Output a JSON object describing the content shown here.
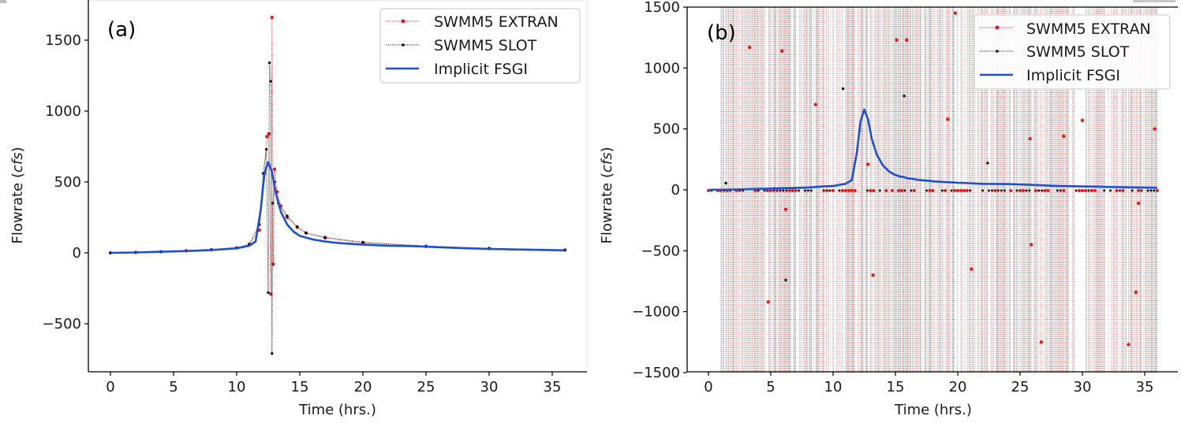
{
  "chart_data": [
    {
      "panel_label": "(a)",
      "type": "line",
      "xlabel": "Time (hrs.)",
      "ylabel_prefix": "Flowrate (",
      "ylabel_unit": "cfs",
      "ylabel_suffix": ")",
      "xlim": [
        -1.5,
        38
      ],
      "ylim": [
        -840,
        1760
      ],
      "xticks": [
        0,
        5,
        10,
        15,
        20,
        25,
        30,
        35
      ],
      "yticks": [
        -500,
        0,
        500,
        1000,
        1500
      ],
      "legend_position": "top-right",
      "series": [
        {
          "name": "SWMM5 EXTRAN",
          "style": "dotted-with-markers",
          "color": "#e8191a",
          "x": [
            0,
            2,
            4,
            6,
            8,
            10,
            11,
            11.8,
            12.2,
            12.4,
            12.55,
            12.7,
            12.8,
            12.9,
            13.0,
            13.2,
            13.5,
            14,
            14.8,
            15.5,
            17,
            20,
            25,
            30,
            36
          ],
          "y": [
            0,
            3,
            8,
            14,
            22,
            35,
            60,
            160,
            560,
            820,
            840,
            -290,
            1660,
            -80,
            590,
            430,
            330,
            250,
            180,
            140,
            105,
            70,
            45,
            30,
            20
          ]
        },
        {
          "name": "SWMM5 SLOT",
          "style": "dotted-with-markers",
          "color": "#111111",
          "x": [
            0,
            2,
            4,
            6,
            8,
            10,
            11,
            11.8,
            12.1,
            12.35,
            12.5,
            12.6,
            12.7,
            12.8,
            12.85,
            13.0,
            13.3,
            14,
            14.8,
            15.5,
            17,
            20,
            25,
            30,
            36
          ],
          "y": [
            0,
            3,
            8,
            14,
            22,
            35,
            60,
            200,
            560,
            730,
            -280,
            1340,
            1210,
            -710,
            350,
            500,
            350,
            260,
            185,
            140,
            110,
            75,
            48,
            32,
            20
          ]
        },
        {
          "name": "Implicit FSGI",
          "style": "solid",
          "color": "#1a4fd6",
          "x": [
            0,
            2,
            4,
            6,
            8,
            10,
            11,
            11.5,
            11.9,
            12.2,
            12.5,
            12.8,
            13.1,
            13.5,
            14,
            14.5,
            15,
            16,
            17,
            18,
            20,
            22,
            24,
            26,
            28,
            30,
            32,
            34,
            36
          ],
          "y": [
            0,
            3,
            8,
            13,
            20,
            32,
            50,
            80,
            300,
            560,
            640,
            570,
            420,
            290,
            200,
            150,
            120,
            95,
            80,
            70,
            58,
            50,
            48,
            40,
            33,
            28,
            24,
            21,
            18
          ]
        }
      ]
    },
    {
      "panel_label": "(b)",
      "type": "line",
      "xlabel": "Time (hrs.)",
      "ylabel_prefix": "Flowrate (",
      "ylabel_unit": "cfs",
      "ylabel_suffix": ")",
      "xlim": [
        -1.5,
        38
      ],
      "ylim": [
        -1500,
        1500
      ],
      "xticks": [
        0,
        5,
        10,
        15,
        20,
        25,
        30,
        35
      ],
      "yticks": [
        -1500,
        -1000,
        -500,
        0,
        500,
        1000,
        1500
      ],
      "legend_position": "top-right",
      "note": "SWMM5 EXTRAN and SWMM5 SLOT oscillate between large positive and negative values from about t=1 to t=36, filling the plot with dense dotted vertical strokes; most markers sit near 0 with scattered outliers.",
      "series": [
        {
          "name": "SWMM5 EXTRAN",
          "style": "dotted-with-markers",
          "color": "#e8191a",
          "outlier_points": [
            [
              3.3,
              1170
            ],
            [
              5.9,
              1140
            ],
            [
              8.6,
              700
            ],
            [
              4.8,
              -920
            ],
            [
              6.2,
              -160
            ],
            [
              13.2,
              -700
            ],
            [
              12.8,
              210
            ],
            [
              15.1,
              1230
            ],
            [
              15.9,
              1230
            ],
            [
              19.2,
              580
            ],
            [
              19.8,
              1450
            ],
            [
              21.1,
              -650
            ],
            [
              25.8,
              420
            ],
            [
              25.9,
              -450
            ],
            [
              26.7,
              -1250
            ],
            [
              28.5,
              440
            ],
            [
              30.0,
              570
            ],
            [
              33.7,
              -1270
            ],
            [
              34.3,
              -840
            ],
            [
              34.5,
              -110
            ],
            [
              35.8,
              500
            ]
          ]
        },
        {
          "name": "SWMM5 SLOT",
          "style": "dotted-with-markers",
          "color": "#111111",
          "outlier_points": [
            [
              1.4,
              55
            ],
            [
              6.2,
              -740
            ],
            [
              10.8,
              830
            ],
            [
              15.7,
              770
            ],
            [
              22.4,
              220
            ]
          ]
        },
        {
          "name": "Implicit FSGI",
          "style": "solid",
          "color": "#1a4fd6",
          "x": [
            0,
            2,
            4,
            6,
            8,
            10,
            11,
            11.5,
            11.9,
            12.2,
            12.5,
            12.8,
            13.1,
            13.5,
            14,
            14.5,
            15,
            16,
            17,
            18,
            20,
            22,
            24,
            26,
            28,
            30,
            32,
            34,
            36
          ],
          "y": [
            0,
            3,
            8,
            13,
            20,
            32,
            50,
            80,
            300,
            560,
            660,
            580,
            420,
            290,
            200,
            150,
            120,
            95,
            80,
            70,
            58,
            50,
            48,
            40,
            33,
            28,
            24,
            21,
            18
          ]
        }
      ]
    }
  ],
  "legend": {
    "items": [
      {
        "label": "SWMM5 EXTRAN",
        "color": "#e8191a"
      },
      {
        "label": "SWMM5 SLOT",
        "color": "#111111"
      },
      {
        "label": "Implicit FSGI",
        "color": "#1a4fd6"
      }
    ]
  }
}
